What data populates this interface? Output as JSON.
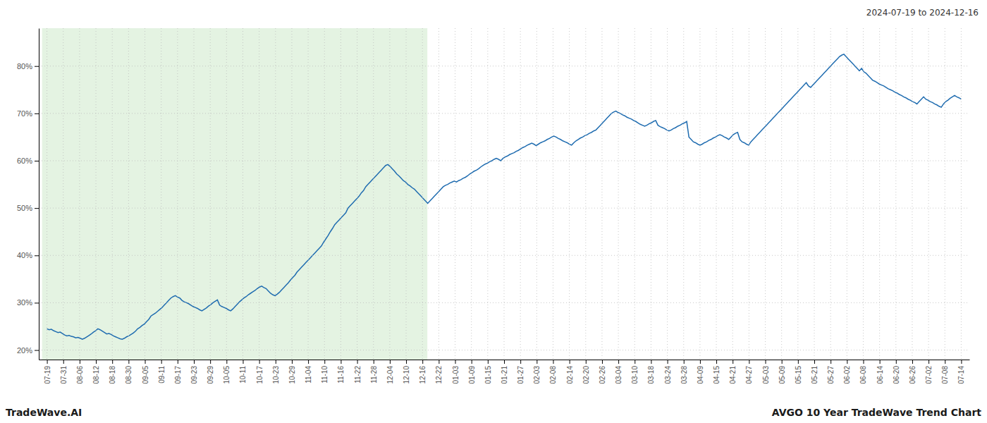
{
  "chart_data": {
    "type": "line",
    "title": "AVGO 10 Year TradeWave Trend Chart",
    "subtitle": "2024-07-19 to 2024-12-16",
    "annotations": [
      "TradeWave.AI"
    ],
    "color": "#1f6cb0",
    "grid": true,
    "spans": [
      {
        "x0": -2.2125,
        "x1": 171.8375,
        "color": "#d6ecd2"
      }
    ],
    "xlim": [
      -3.6875,
      416.6875
    ],
    "xticks": [
      {
        "value": 0,
        "label": "07-19"
      },
      {
        "value": 7.375,
        "label": "07-31"
      },
      {
        "value": 14.75,
        "label": "08-06"
      },
      {
        "value": 22.125,
        "label": "08-12"
      },
      {
        "value": 29.5,
        "label": "08-18"
      },
      {
        "value": 36.875,
        "label": "08-30"
      },
      {
        "value": 44.25,
        "label": "09-05"
      },
      {
        "value": 51.625,
        "label": "09-11"
      },
      {
        "value": 59,
        "label": "09-17"
      },
      {
        "value": 66.375,
        "label": "09-23"
      },
      {
        "value": 73.75,
        "label": "09-29"
      },
      {
        "value": 81.125,
        "label": "10-05"
      },
      {
        "value": 88.5,
        "label": "10-11"
      },
      {
        "value": 95.875,
        "label": "10-17"
      },
      {
        "value": 103.25,
        "label": "10-23"
      },
      {
        "value": 110.625,
        "label": "10-29"
      },
      {
        "value": 118,
        "label": "11-04"
      },
      {
        "value": 125.375,
        "label": "11-10"
      },
      {
        "value": 132.75,
        "label": "11-16"
      },
      {
        "value": 140.125,
        "label": "11-22"
      },
      {
        "value": 147.5,
        "label": "11-28"
      },
      {
        "value": 154.875,
        "label": "12-04"
      },
      {
        "value": 162.25,
        "label": "12-10"
      },
      {
        "value": 169.625,
        "label": "12-16"
      },
      {
        "value": 177,
        "label": "12-22"
      },
      {
        "value": 184.375,
        "label": "01-03"
      },
      {
        "value": 191.75,
        "label": "01-09"
      },
      {
        "value": 199.125,
        "label": "01-15"
      },
      {
        "value": 206.5,
        "label": "01-21"
      },
      {
        "value": 213.875,
        "label": "01-27"
      },
      {
        "value": 221.25,
        "label": "02-03"
      },
      {
        "value": 228.625,
        "label": "02-08"
      },
      {
        "value": 236,
        "label": "02-14"
      },
      {
        "value": 243.375,
        "label": "02-20"
      },
      {
        "value": 250.75,
        "label": "02-26"
      },
      {
        "value": 258.125,
        "label": "03-04"
      },
      {
        "value": 265.5,
        "label": "03-10"
      },
      {
        "value": 272.875,
        "label": "03-18"
      },
      {
        "value": 280.25,
        "label": "03-24"
      },
      {
        "value": 287.625,
        "label": "03-28"
      },
      {
        "value": 295,
        "label": "04-09"
      },
      {
        "value": 302.375,
        "label": "04-15"
      },
      {
        "value": 309.75,
        "label": "04-21"
      },
      {
        "value": 317.125,
        "label": "04-27"
      },
      {
        "value": 324.5,
        "label": "05-03"
      },
      {
        "value": 331.875,
        "label": "05-09"
      },
      {
        "value": 339.25,
        "label": "05-15"
      },
      {
        "value": 346.625,
        "label": "05-21"
      },
      {
        "value": 354,
        "label": "05-27"
      },
      {
        "value": 361.375,
        "label": "06-02"
      },
      {
        "value": 368.75,
        "label": "06-08"
      },
      {
        "value": 376.125,
        "label": "06-14"
      },
      {
        "value": 383.5,
        "label": "06-20"
      },
      {
        "value": 390.875,
        "label": "06-26"
      },
      {
        "value": 398.25,
        "label": "07-02"
      },
      {
        "value": 405.625,
        "label": "07-08"
      },
      {
        "value": 413,
        "label": "07-14"
      }
    ],
    "ylim": [
      18,
      88
    ],
    "yticks": [
      {
        "value": 20,
        "label": "20%"
      },
      {
        "value": 30,
        "label": "30%"
      },
      {
        "value": 40,
        "label": "40%"
      },
      {
        "value": 50,
        "label": "50%"
      },
      {
        "value": 60,
        "label": "60%"
      },
      {
        "value": 70,
        "label": "70%"
      },
      {
        "value": 80,
        "label": "80%"
      }
    ],
    "values": [
      24.5,
      24.3,
      24.4,
      24.1,
      23.9,
      23.7,
      23.8,
      23.5,
      23.2,
      23.0,
      23.1,
      22.9,
      22.8,
      22.6,
      22.7,
      22.5,
      22.3,
      22.5,
      22.8,
      23.1,
      23.4,
      23.8,
      24.1,
      24.5,
      24.3,
      24.0,
      23.7,
      23.4,
      23.5,
      23.3,
      23.0,
      22.8,
      22.6,
      22.4,
      22.3,
      22.5,
      22.8,
      23.0,
      23.3,
      23.6,
      24.0,
      24.5,
      24.8,
      25.2,
      25.5,
      26.0,
      26.5,
      27.2,
      27.5,
      27.8,
      28.2,
      28.6,
      29.0,
      29.5,
      30.0,
      30.5,
      31.0,
      31.3,
      31.5,
      31.2,
      31.0,
      30.5,
      30.2,
      30.0,
      29.8,
      29.5,
      29.2,
      29.0,
      28.8,
      28.5,
      28.3,
      28.6,
      28.9,
      29.3,
      29.6,
      30.0,
      30.3,
      30.6,
      29.5,
      29.2,
      29.0,
      28.8,
      28.5,
      28.3,
      28.7,
      29.2,
      29.7,
      30.2,
      30.6,
      31.0,
      31.3,
      31.7,
      32.0,
      32.3,
      32.6,
      33.0,
      33.3,
      33.5,
      33.2,
      33.0,
      32.5,
      32.0,
      31.7,
      31.5,
      31.8,
      32.2,
      32.7,
      33.2,
      33.7,
      34.2,
      34.8,
      35.3,
      35.8,
      36.5,
      37.0,
      37.5,
      38.0,
      38.5,
      39.0,
      39.5,
      40.0,
      40.5,
      41.0,
      41.5,
      42.0,
      42.8,
      43.5,
      44.2,
      45.0,
      45.7,
      46.5,
      47.0,
      47.5,
      48.0,
      48.5,
      49.0,
      50.0,
      50.5,
      51.0,
      51.5,
      52.0,
      52.5,
      53.2,
      53.7,
      54.5,
      55.0,
      55.5,
      56.0,
      56.5,
      57.0,
      57.5,
      58.0,
      58.5,
      59.0,
      59.2,
      58.8,
      58.3,
      57.8,
      57.2,
      56.8,
      56.3,
      55.8,
      55.5,
      55.0,
      54.7,
      54.3,
      54.0,
      53.5,
      53.0,
      52.5,
      52.0,
      51.5,
      51.0,
      51.5,
      52.0,
      52.5,
      53.0,
      53.5,
      54.0,
      54.5,
      54.8,
      55.0,
      55.3,
      55.5,
      55.7,
      55.5,
      55.8,
      56.0,
      56.3,
      56.5,
      56.8,
      57.2,
      57.5,
      57.8,
      58.0,
      58.3,
      58.7,
      59.0,
      59.3,
      59.5,
      59.8,
      60.0,
      60.3,
      60.5,
      60.3,
      60.0,
      60.5,
      60.8,
      61.0,
      61.3,
      61.5,
      61.7,
      62.0,
      62.2,
      62.5,
      62.8,
      63.0,
      63.3,
      63.5,
      63.7,
      63.5,
      63.2,
      63.5,
      63.8,
      64.0,
      64.2,
      64.5,
      64.7,
      65.0,
      65.2,
      65.0,
      64.7,
      64.5,
      64.2,
      64.0,
      63.8,
      63.5,
      63.3,
      63.8,
      64.2,
      64.5,
      64.8,
      65.0,
      65.3,
      65.5,
      65.8,
      66.0,
      66.3,
      66.5,
      67.0,
      67.5,
      68.0,
      68.5,
      69.0,
      69.5,
      70.0,
      70.3,
      70.5,
      70.2,
      70.0,
      69.7,
      69.5,
      69.2,
      69.0,
      68.8,
      68.5,
      68.3,
      68.0,
      67.7,
      67.5,
      67.3,
      67.5,
      67.8,
      68.0,
      68.3,
      68.5,
      67.5,
      67.2,
      67.0,
      66.8,
      66.5,
      66.3,
      66.5,
      66.8,
      67.0,
      67.3,
      67.5,
      67.8,
      68.0,
      68.3,
      65.0,
      64.5,
      64.0,
      63.8,
      63.5,
      63.3,
      63.5,
      63.8,
      64.0,
      64.3,
      64.5,
      64.8,
      65.0,
      65.3,
      65.5,
      65.3,
      65.0,
      64.8,
      64.5,
      65.0,
      65.5,
      65.8,
      66.0,
      64.5,
      64.0,
      63.8,
      63.5,
      63.3,
      64.0,
      64.5,
      65.0,
      65.5,
      66.0,
      66.5,
      67.0,
      67.5,
      68.0,
      68.5,
      69.0,
      69.5,
      70.0,
      70.5,
      71.0,
      71.5,
      72.0,
      72.5,
      73.0,
      73.5,
      74.0,
      74.5,
      75.0,
      75.5,
      76.0,
      76.5,
      75.8,
      75.5,
      76.0,
      76.5,
      77.0,
      77.5,
      78.0,
      78.5,
      79.0,
      79.5,
      80.0,
      80.5,
      81.0,
      81.5,
      82.0,
      82.3,
      82.5,
      82.0,
      81.5,
      81.0,
      80.5,
      80.0,
      79.5,
      79.0,
      79.5,
      78.8,
      78.5,
      78.0,
      77.5,
      77.0,
      76.8,
      76.5,
      76.2,
      76.0,
      75.8,
      75.5,
      75.2,
      75.0,
      74.8,
      74.5,
      74.3,
      74.0,
      73.8,
      73.5,
      73.3,
      73.0,
      72.8,
      72.5,
      72.3,
      72.0,
      72.5,
      73.0,
      73.5,
      73.0,
      72.8,
      72.5,
      72.3,
      72.0,
      71.8,
      71.5,
      71.3,
      72.0,
      72.5,
      72.8,
      73.2,
      73.5,
      73.8,
      73.5,
      73.3,
      73.0
    ]
  }
}
